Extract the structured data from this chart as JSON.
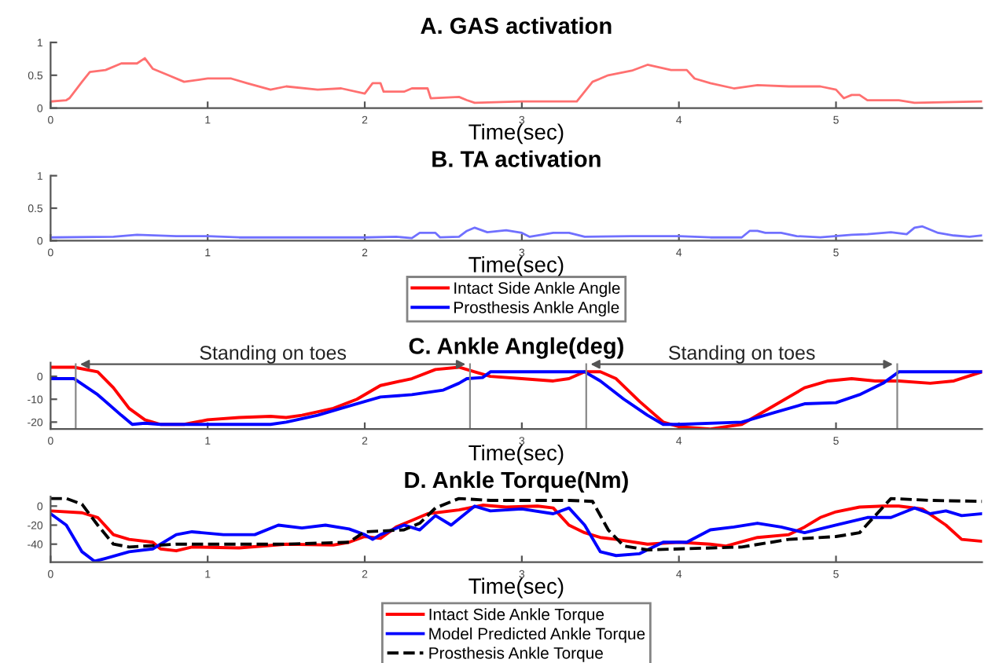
{
  "chart_data": [
    {
      "type": "line",
      "title": "A. GAS activation",
      "xlabel": "Time(sec)",
      "xlim": [
        0,
        5.93
      ],
      "xticks": [
        0,
        1,
        2,
        3,
        4,
        5
      ],
      "ylim": [
        0,
        1
      ],
      "yticks": [
        0,
        0.5,
        1
      ],
      "series": [
        {
          "color": "#ff7070",
          "line_style": "solid",
          "x": [
            0,
            0.1,
            0.12,
            0.2,
            0.25,
            0.35,
            0.45,
            0.55,
            0.6,
            0.65,
            0.75,
            0.85,
            1.0,
            1.15,
            1.25,
            1.4,
            1.5,
            1.7,
            1.85,
            2.0,
            2.05,
            2.1,
            2.12,
            2.25,
            2.3,
            2.4,
            2.42,
            2.6,
            2.65,
            2.7,
            3.0,
            3.35,
            3.45,
            3.55,
            3.7,
            3.8,
            3.95,
            4.05,
            4.1,
            4.2,
            4.35,
            4.5,
            4.7,
            4.9,
            5.0,
            5.05,
            5.1,
            5.15,
            5.2,
            5.4,
            5.5,
            5.93
          ],
          "values": [
            0.1,
            0.12,
            0.15,
            0.4,
            0.55,
            0.58,
            0.68,
            0.68,
            0.76,
            0.6,
            0.5,
            0.4,
            0.45,
            0.45,
            0.38,
            0.28,
            0.33,
            0.28,
            0.3,
            0.22,
            0.38,
            0.38,
            0.25,
            0.25,
            0.3,
            0.3,
            0.15,
            0.17,
            0.12,
            0.08,
            0.1,
            0.1,
            0.4,
            0.5,
            0.57,
            0.66,
            0.58,
            0.58,
            0.45,
            0.38,
            0.3,
            0.35,
            0.33,
            0.33,
            0.28,
            0.15,
            0.2,
            0.2,
            0.12,
            0.12,
            0.08,
            0.1
          ]
        }
      ]
    },
    {
      "type": "line",
      "title": "B. TA activation",
      "xlabel": "Time(sec)",
      "xlim": [
        0,
        5.93
      ],
      "xticks": [
        0,
        1,
        2,
        3,
        4,
        5
      ],
      "ylim": [
        0,
        1
      ],
      "yticks": [
        0,
        0.5,
        1
      ],
      "series": [
        {
          "color": "#7070ff",
          "line_style": "solid",
          "x": [
            0,
            0.4,
            0.55,
            0.8,
            1.0,
            1.2,
            2.0,
            2.2,
            2.3,
            2.35,
            2.45,
            2.48,
            2.6,
            2.65,
            2.7,
            2.78,
            2.9,
            3.0,
            3.05,
            3.2,
            3.3,
            3.4,
            3.7,
            4.0,
            4.2,
            4.4,
            4.45,
            4.5,
            4.55,
            4.65,
            4.75,
            4.9,
            5.1,
            5.2,
            5.35,
            5.45,
            5.5,
            5.55,
            5.65,
            5.75,
            5.85,
            5.93
          ],
          "values": [
            0.05,
            0.06,
            0.09,
            0.07,
            0.07,
            0.05,
            0.05,
            0.06,
            0.04,
            0.12,
            0.12,
            0.05,
            0.06,
            0.15,
            0.2,
            0.13,
            0.16,
            0.12,
            0.06,
            0.12,
            0.12,
            0.06,
            0.07,
            0.07,
            0.05,
            0.05,
            0.15,
            0.15,
            0.12,
            0.12,
            0.07,
            0.05,
            0.09,
            0.1,
            0.13,
            0.1,
            0.2,
            0.22,
            0.12,
            0.08,
            0.06,
            0.08
          ]
        }
      ]
    },
    {
      "type": "line",
      "title": "C. Ankle Angle(deg)",
      "xlabel": "Time(sec)",
      "xlim": [
        0,
        5.93
      ],
      "xticks": [
        0,
        1,
        2,
        3,
        4,
        5
      ],
      "ylim": [
        -23,
        6
      ],
      "yticks": [
        -20,
        -10,
        0
      ],
      "legend": "top",
      "ref_lines": [
        {
          "axis": "x",
          "value": 0.16,
          "color": "#888888"
        },
        {
          "axis": "x",
          "value": 2.67,
          "color": "#888888"
        },
        {
          "axis": "x",
          "value": 3.41,
          "color": "#888888"
        },
        {
          "axis": "x",
          "value": 5.39,
          "color": "#888888"
        }
      ],
      "annotations": [
        "Standing on toes",
        "Standing on toes"
      ],
      "series": [
        {
          "name": "Intact Side Ankle Angle",
          "color": "#ff0000",
          "line_style": "solid",
          "x": [
            0,
            0.15,
            0.3,
            0.4,
            0.5,
            0.6,
            0.7,
            0.85,
            1.0,
            1.2,
            1.4,
            1.5,
            1.6,
            1.8,
            1.95,
            2.1,
            2.3,
            2.45,
            2.6,
            2.7,
            2.8,
            3.0,
            3.2,
            3.3,
            3.4,
            3.5,
            3.6,
            3.75,
            3.9,
            4.0,
            4.2,
            4.4,
            4.6,
            4.8,
            4.95,
            5.1,
            5.25,
            5.4,
            5.6,
            5.75,
            5.93
          ],
          "values": [
            4,
            4,
            2,
            -5,
            -14,
            -19,
            -21,
            -21,
            -19,
            -18,
            -17.5,
            -18,
            -17,
            -14,
            -10,
            -4,
            -1,
            3,
            4,
            2,
            0,
            -1,
            -2,
            -1,
            2,
            2,
            -1,
            -11,
            -20,
            -22,
            -23,
            -21,
            -13,
            -5,
            -2,
            -1,
            -2,
            -2,
            -3,
            -2,
            2
          ]
        },
        {
          "name": "Prosthesis Ankle Angle",
          "color": "#0000ff",
          "line_style": "solid",
          "x": [
            0,
            0.15,
            0.3,
            0.45,
            0.52,
            0.6,
            0.7,
            1.0,
            1.4,
            1.5,
            1.7,
            1.9,
            2.1,
            2.3,
            2.5,
            2.6,
            2.65,
            2.75,
            2.8,
            3.0,
            3.3,
            3.4,
            3.5,
            3.65,
            3.8,
            3.9,
            4.0,
            4.4,
            4.6,
            4.8,
            5.0,
            5.15,
            5.3,
            5.4,
            5.6,
            5.93
          ],
          "values": [
            -1,
            -1,
            -8,
            -17,
            -21,
            -20.5,
            -21,
            -21,
            -21,
            -20,
            -17,
            -13,
            -9,
            -8,
            -6,
            -3,
            -1,
            -0.5,
            2,
            2,
            2,
            2,
            -2,
            -10,
            -17,
            -21,
            -21,
            -20,
            -16,
            -12,
            -11.5,
            -8,
            -3,
            2,
            2,
            2
          ]
        }
      ]
    },
    {
      "type": "line",
      "title": "D. Ankle Torque(Nm)",
      "xlabel": "Time(sec)",
      "xlim": [
        0,
        5.93
      ],
      "xticks": [
        0,
        1,
        2,
        3,
        4,
        5
      ],
      "ylim": [
        -59,
        10
      ],
      "yticks": [
        -40,
        -20,
        0
      ],
      "legend": "bottom",
      "series": [
        {
          "name": "Intact Side Ankle Torque",
          "color": "#ff0000",
          "line_style": "solid",
          "x": [
            0,
            0.2,
            0.3,
            0.4,
            0.5,
            0.65,
            0.7,
            0.8,
            0.9,
            1.2,
            1.5,
            1.8,
            1.9,
            2.0,
            2.1,
            2.2,
            2.3,
            2.4,
            2.6,
            2.75,
            2.9,
            3.1,
            3.2,
            3.3,
            3.4,
            3.5,
            3.6,
            3.8,
            4.0,
            4.2,
            4.3,
            4.5,
            4.7,
            4.8,
            4.9,
            5.0,
            5.15,
            5.3,
            5.4,
            5.55,
            5.7,
            5.8,
            5.93
          ],
          "values": [
            -5,
            -7,
            -12,
            -30,
            -35,
            -38,
            -45,
            -47,
            -43,
            -44,
            -40,
            -41,
            -38,
            -32,
            -34,
            -22,
            -15,
            -8,
            -4,
            1,
            -1,
            0,
            -2,
            -20,
            -28,
            -33,
            -35,
            -40,
            -38,
            -40,
            -42,
            -33,
            -30,
            -22,
            -12,
            -6,
            -1,
            0,
            0,
            -3,
            -20,
            -35,
            -37
          ]
        },
        {
          "name": "Model Predicted Ankle Torque",
          "color": "#0000ff",
          "line_style": "solid",
          "x": [
            0,
            0.1,
            0.2,
            0.28,
            0.35,
            0.5,
            0.65,
            0.8,
            0.9,
            1.1,
            1.3,
            1.45,
            1.6,
            1.75,
            1.9,
            2.0,
            2.05,
            2.1,
            2.25,
            2.35,
            2.45,
            2.55,
            2.7,
            2.8,
            3.0,
            3.2,
            3.3,
            3.4,
            3.5,
            3.6,
            3.75,
            3.9,
            4.05,
            4.2,
            4.35,
            4.5,
            4.65,
            4.8,
            5.0,
            5.2,
            5.35,
            5.5,
            5.6,
            5.7,
            5.8,
            5.93
          ],
          "values": [
            -8,
            -20,
            -48,
            -58,
            -55,
            -48,
            -45,
            -30,
            -27,
            -30,
            -30,
            -20,
            -23,
            -20,
            -24,
            -30,
            -35,
            -30,
            -20,
            -25,
            -10,
            -20,
            0,
            -5,
            -3,
            -8,
            -2,
            -20,
            -48,
            -52,
            -50,
            -38,
            -38,
            -25,
            -22,
            -18,
            -22,
            -28,
            -20,
            -12,
            -12,
            -2,
            -8,
            -5,
            -10,
            -8
          ]
        },
        {
          "name": "Prosthesis Ankle Torque",
          "color": "#000000",
          "line_style": "dashed",
          "x": [
            0,
            0.1,
            0.2,
            0.3,
            0.4,
            0.5,
            0.8,
            1.5,
            1.9,
            2.0,
            2.25,
            2.35,
            2.45,
            2.6,
            2.8,
            3.3,
            3.45,
            3.55,
            3.65,
            3.8,
            4.4,
            4.7,
            5.0,
            5.15,
            5.25,
            5.35,
            5.6,
            5.93
          ],
          "values": [
            8,
            8,
            2,
            -20,
            -40,
            -43,
            -40,
            -40,
            -38,
            -27,
            -25,
            -18,
            -2,
            8,
            6,
            6,
            5,
            -25,
            -42,
            -46,
            -43,
            -35,
            -32,
            -28,
            -10,
            8,
            6,
            5
          ]
        }
      ]
    }
  ]
}
